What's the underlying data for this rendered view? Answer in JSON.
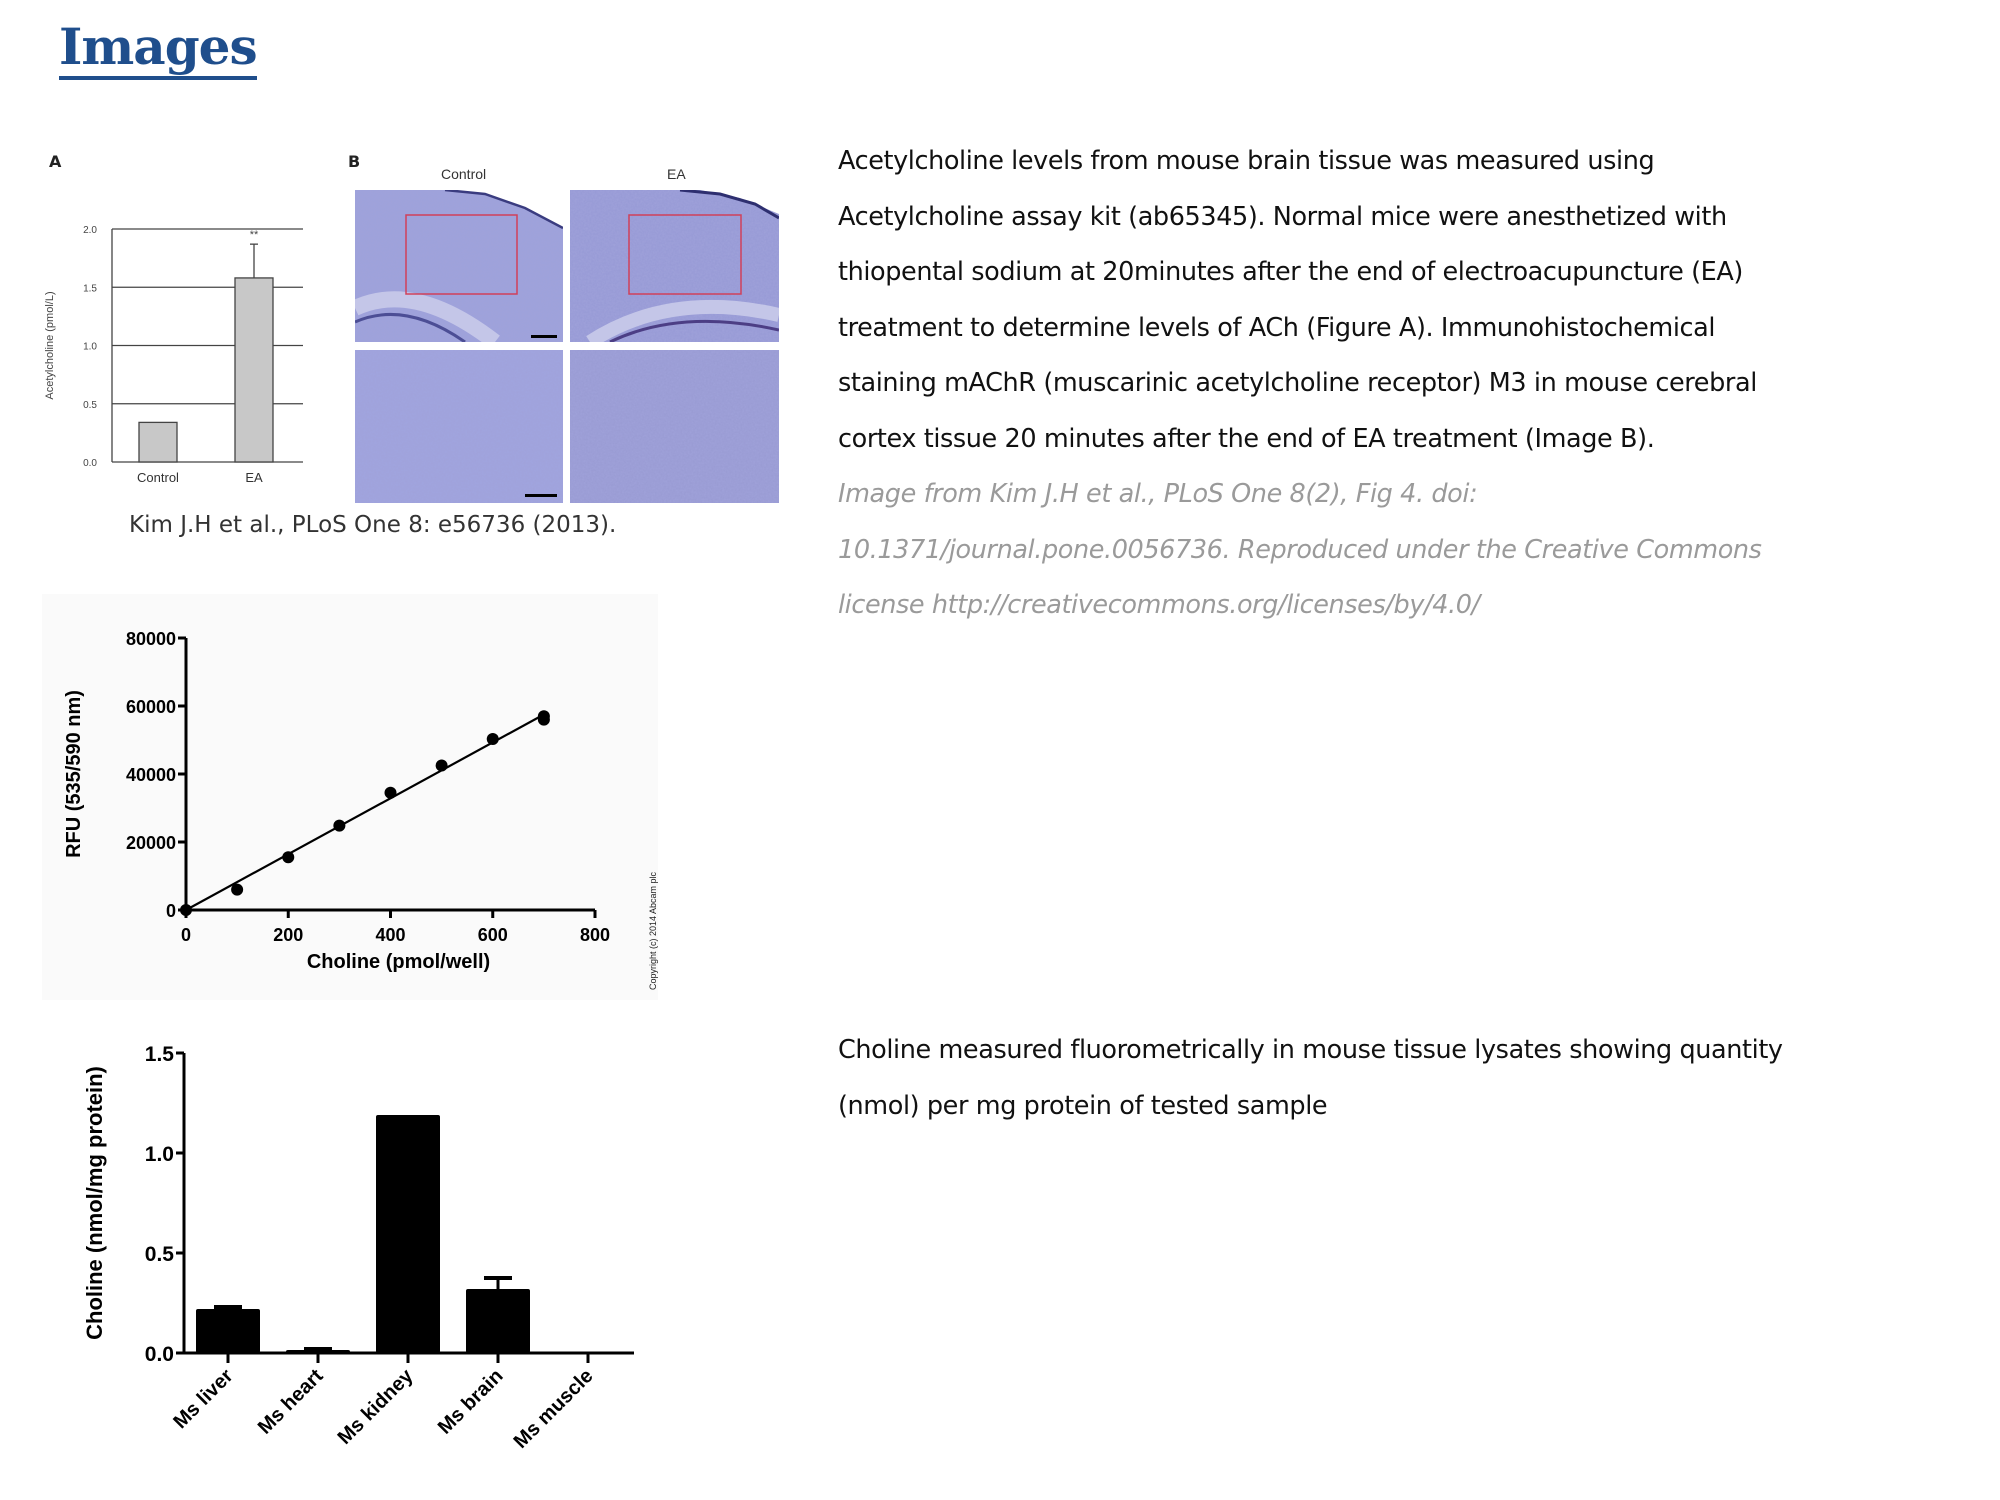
{
  "header": {
    "title": "Images"
  },
  "section1": {
    "lines": [
      "Acetylcholine levels from mouse brain tissue was measured using",
      "Acetylcholine assay kit (ab65345). Normal mice were anesthetized with",
      "thiopental sodium at 20minutes after the end of  electroacupuncture (EA)",
      "treatment to determine levels of ACh (Figure A). Immunohistochemical",
      "staining  mAChR (muscarinic acetylcholine receptor) M3 in mouse cerebral",
      "cortex tissue 20 minutes after the end of EA treatment (Image B)."
    ],
    "credit_lines": [
      "Image from Kim J.H et al., PLoS One 8(2), Fig 4. doi:",
      "10.1371/journal.pone.0056736. Reproduced under the Creative Commons",
      "license http://creativecommons.org/licenses/by/4.0/"
    ]
  },
  "figure1": {
    "panel_a_label": "A",
    "panel_b_label": "B",
    "panel_b_columns": [
      "Control",
      "EA"
    ],
    "caption": "Kim J.H et al., PLoS One 8: e56736 (2013).",
    "stain_color": "#8f93d4",
    "roi_color": "#d0405a"
  },
  "section2": {
    "lines": [
      "Choline measured fluorometrically in mouse tissue lysates showing quantity",
      "(nmol) per mg protein of tested sample"
    ]
  },
  "copyright": "Copyright (c) 2014 Abcam plc",
  "chart_data": [
    {
      "type": "bar",
      "categories": [
        "Control",
        "EA"
      ],
      "values": [
        0.34,
        1.58
      ],
      "errors_upper": [
        null,
        1.87
      ],
      "annotations": [
        "",
        "**"
      ],
      "ylabel": "Acetylcholine (pmol/L)",
      "xlabel": "",
      "ylim": [
        0,
        2.0
      ],
      "yticks": [
        "0.0",
        "0.5",
        "1.0",
        "1.5",
        "2.0"
      ],
      "grid": true,
      "bar_color": "#c8c8c8"
    },
    {
      "type": "scatter",
      "x": [
        0,
        100,
        200,
        300,
        400,
        500,
        600,
        700,
        700
      ],
      "y": [
        0,
        6000,
        15500,
        24800,
        34500,
        42500,
        50300,
        56000,
        57000
      ],
      "fit_line": {
        "x": [
          0,
          700
        ],
        "y": [
          0,
          57500
        ]
      },
      "xlabel": "Choline (pmol/well)",
      "ylabel": "RFU (535/590 nm)",
      "xlim": [
        0,
        800
      ],
      "ylim": [
        0,
        80000
      ],
      "xticks": [
        "0",
        "200",
        "400",
        "600",
        "800"
      ],
      "yticks": [
        "0",
        "20000",
        "40000",
        "60000",
        "80000"
      ],
      "grid": false
    },
    {
      "type": "bar",
      "categories": [
        "Ms liver",
        "Ms heart",
        "Ms kidney",
        "Ms brain",
        "Ms muscle"
      ],
      "values": [
        0.22,
        0.015,
        1.19,
        0.32,
        0
      ],
      "errors_upper": [
        0.23,
        0.02,
        1.19,
        0.375,
        0
      ],
      "ylabel": "Choline (nmol/mg protein)",
      "xlabel": "",
      "ylim": [
        0,
        1.5
      ],
      "yticks": [
        "0.0",
        "0.5",
        "1.0",
        "1.5"
      ],
      "grid": false,
      "bar_color": "#000000"
    }
  ]
}
